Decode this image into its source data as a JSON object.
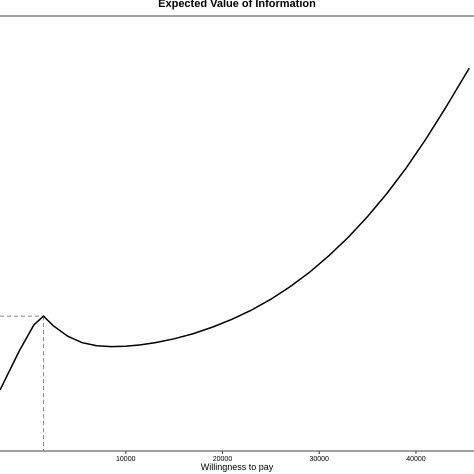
{
  "chart_data": {
    "type": "line",
    "title": "Expected Value of Information",
    "xlabel": "Willingness to pay",
    "ylabel": "",
    "xlim": [
      -3000,
      46000
    ],
    "ylim": [
      0,
      100
    ],
    "x_ticks": [
      10000,
      20000,
      30000,
      40000
    ],
    "x_tick_labels": [
      "10000",
      "20000",
      "30000",
      "40000"
    ],
    "grid": false,
    "legend": "none",
    "line_color": "#000000",
    "reference_color": "#888888",
    "reference_point": {
      "x": 1500,
      "y": 31
    },
    "series": [
      {
        "x": [
          -3000,
          -1000,
          500,
          1500,
          2500,
          4000,
          5500,
          7000,
          8500,
          10000,
          11500,
          13000,
          15000,
          17000,
          19000,
          21000,
          23000,
          25000,
          27000,
          29000,
          31000,
          33000,
          35000,
          37000,
          39000,
          41000,
          43000,
          45500
        ],
        "y": [
          14,
          23,
          29,
          31,
          28.8,
          26.4,
          24.9,
          24.2,
          24.0,
          24.1,
          24.4,
          24.9,
          25.8,
          27.0,
          28.5,
          30.3,
          32.4,
          34.9,
          37.8,
          41.1,
          44.9,
          49.1,
          53.9,
          59.2,
          65.1,
          71.6,
          78.7,
          88
        ]
      }
    ]
  }
}
